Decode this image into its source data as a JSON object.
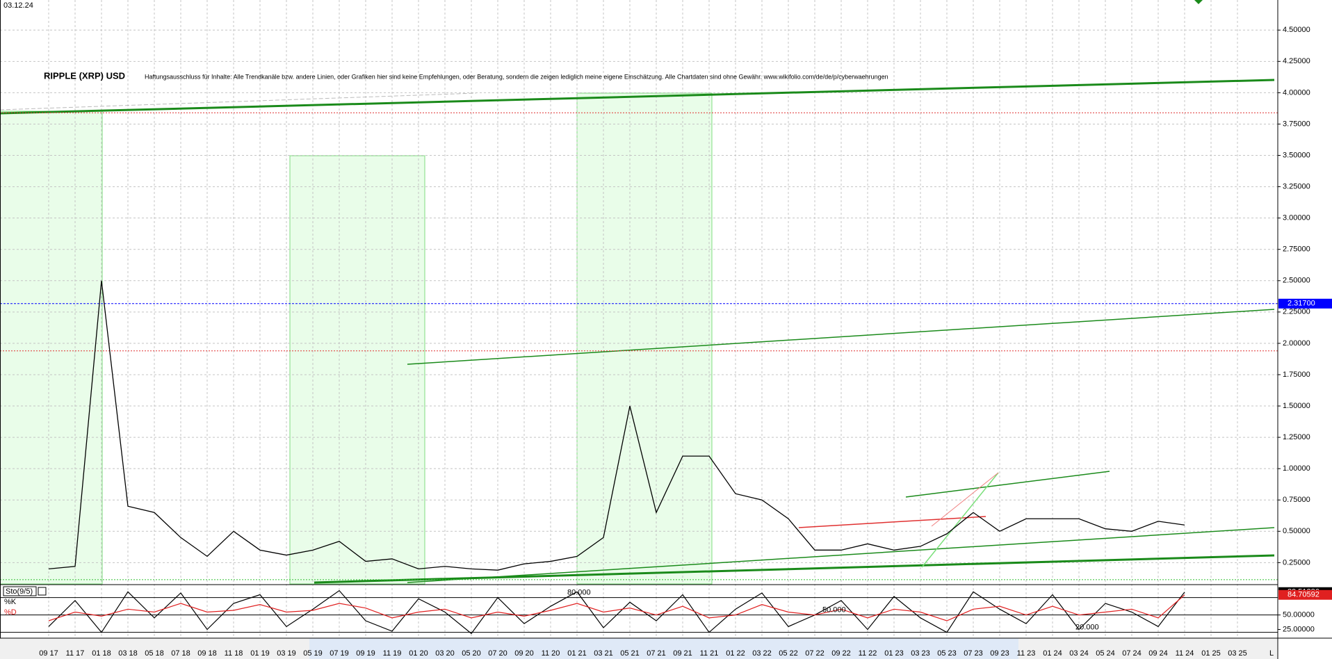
{
  "chart_data": [
    {
      "type": "line",
      "date_label": "03.12.24",
      "title": "RIPPLE (XRP) USD",
      "subtitle": "Haftungsausschluss für Inhalte: Alle Trendkanäle bzw. andere Linien, oder Grafiken hier sind keine Empfehlungen, oder Beratung, sondern die zeigen lediglich meine eigene Einschätzung. Alle Chartdaten sind ohne Gewähr. www.wikifolio.com/de/de/p/cyberwaehrungen",
      "categories": [
        "09 17",
        "11 17",
        "01 18",
        "03 18",
        "05 18",
        "07 18",
        "09 18",
        "11 18",
        "01 19",
        "03 19",
        "05 19",
        "07 19",
        "09 19",
        "11 19",
        "01 20",
        "03 20",
        "05 20",
        "07 20",
        "09 20",
        "11 20",
        "01 21",
        "03 21",
        "05 21",
        "07 21",
        "09 21",
        "11 21",
        "01 22",
        "03 22",
        "05 22",
        "07 22",
        "09 22",
        "11 22",
        "01 23",
        "03 23",
        "05 23",
        "07 23",
        "09 23",
        "11 23",
        "01 24",
        "03 24",
        "05 24",
        "07 24",
        "09 24",
        "11 24",
        "01 25",
        "03 25"
      ],
      "values": [
        0.2,
        0.22,
        2.5,
        0.7,
        0.65,
        0.45,
        0.3,
        0.5,
        0.35,
        0.31,
        0.35,
        0.42,
        0.26,
        0.28,
        0.2,
        0.22,
        0.2,
        0.19,
        0.24,
        0.26,
        0.3,
        0.45,
        1.5,
        0.65,
        1.1,
        1.1,
        0.8,
        0.75,
        0.6,
        0.35,
        0.35,
        0.4,
        0.35,
        0.38,
        0.48,
        0.65,
        0.5,
        0.6,
        0.6,
        0.6,
        0.52,
        0.5,
        0.58,
        0.55,
        null,
        null
      ],
      "color": "#000000",
      "x_axis_end_label": "L",
      "ylim": [
        0.08,
        4.74
      ],
      "yticks": [
        {
          "value": 0.25,
          "label": "0.25000"
        },
        {
          "value": 0.5,
          "label": "0.50000"
        },
        {
          "value": 0.75,
          "label": "0.75000"
        },
        {
          "value": 1,
          "label": "1.00000"
        },
        {
          "value": 1.25,
          "label": "1.25000"
        },
        {
          "value": 1.5,
          "label": "1.50000"
        },
        {
          "value": 1.75,
          "label": "1.75000"
        },
        {
          "value": 2,
          "label": "2.00000"
        },
        {
          "value": 2.25,
          "label": "2.25000"
        },
        {
          "value": 2.5,
          "label": "2.50000"
        },
        {
          "value": 2.75,
          "label": "2.75000"
        },
        {
          "value": 3,
          "label": "3.00000"
        },
        {
          "value": 3.25,
          "label": "3.25000"
        },
        {
          "value": 3.5,
          "label": "3.50000"
        },
        {
          "value": 3.75,
          "label": "3.75000"
        },
        {
          "value": 4,
          "label": "4.00000"
        },
        {
          "value": 4.25,
          "label": "4.25000"
        },
        {
          "value": 4.5,
          "label": "4.50000"
        }
      ],
      "grid": true,
      "hlines": [
        {
          "value": 3.84,
          "color": "#e03030"
        },
        {
          "value": 1.94,
          "color": "#e03030"
        },
        {
          "value": 0.114,
          "color": "#30c030"
        }
      ],
      "last_price": {
        "value": 2.317,
        "label": "2.31700",
        "color": "#0000ff"
      }
    },
    {
      "type": "line",
      "title": "Sto(9/5)",
      "series": [
        {
          "name": "%K",
          "color": "#000000",
          "values": [
            30,
            75,
            20,
            90,
            45,
            88,
            25,
            70,
            85,
            30,
            60,
            92,
            40,
            22,
            78,
            55,
            18,
            80,
            35,
            65,
            90,
            28,
            72,
            40,
            85,
            20,
            60,
            88,
            30,
            50,
            75,
            25,
            82,
            45,
            20,
            90,
            60,
            35,
            85,
            25,
            70,
            55,
            30,
            89.51386,
            null,
            null
          ]
        },
        {
          "name": "%D",
          "color": "#e02020",
          "values": [
            40,
            55,
            48,
            60,
            55,
            70,
            55,
            58,
            68,
            55,
            58,
            70,
            62,
            45,
            55,
            60,
            45,
            55,
            48,
            58,
            70,
            55,
            62,
            50,
            65,
            45,
            50,
            68,
            55,
            50,
            60,
            45,
            60,
            55,
            40,
            60,
            65,
            50,
            65,
            50,
            55,
            60,
            45,
            84.70592,
            null,
            null
          ]
        }
      ],
      "ylim": [
        10,
        100
      ],
      "yticks": [
        {
          "value": 50,
          "label": "50.00000"
        },
        {
          "value": 25,
          "label": "25.00000"
        }
      ],
      "levels": [
        {
          "value": 80,
          "label": "80.000"
        },
        {
          "value": 50,
          "label": "50.000"
        },
        {
          "value": 20,
          "label": "20.000"
        }
      ],
      "grid": true
    }
  ]
}
